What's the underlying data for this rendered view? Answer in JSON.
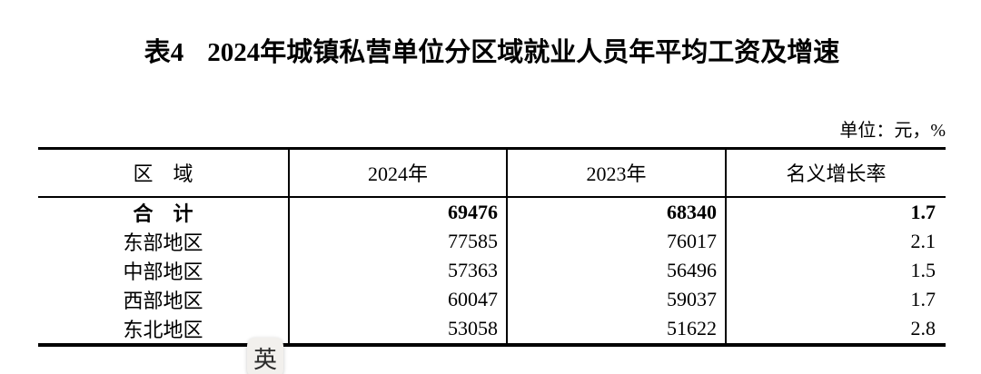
{
  "title": {
    "tag": "表4",
    "text": "2024年城镇私营单位分区域就业人员年平均工资及增速"
  },
  "unit_note": "单位：元，%",
  "table": {
    "columns": [
      "区　域",
      "2024年",
      "2023年",
      "名义增长率"
    ],
    "rows": [
      {
        "region": "合　计",
        "y2024": "69476",
        "y2023": "68340",
        "growth": "1.7"
      },
      {
        "region": "东部地区",
        "y2024": "77585",
        "y2023": "76017",
        "growth": "2.1"
      },
      {
        "region": "中部地区",
        "y2024": "57363",
        "y2023": "56496",
        "growth": "1.5"
      },
      {
        "region": "西部地区",
        "y2024": "60047",
        "y2023": "59037",
        "growth": "1.7"
      },
      {
        "region": "东北地区",
        "y2024": "53058",
        "y2023": "51622",
        "growth": "2.8"
      }
    ]
  },
  "translate_button": {
    "label": "英"
  },
  "colors": {
    "text": "#000000",
    "table_border": "#000000",
    "badge_background": "#f2f0ed",
    "badge_text": "#2b2b2b"
  }
}
